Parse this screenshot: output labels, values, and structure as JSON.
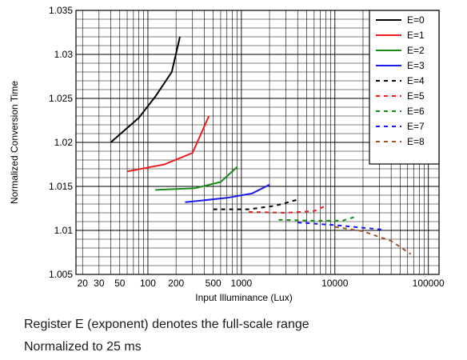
{
  "chart_data": {
    "type": "line",
    "title": "",
    "xlabel": "Input Illuminance (Lux)",
    "ylabel": "Normalized Conversion Time",
    "x_scale": "log",
    "xlim": [
      17,
      130000
    ],
    "ylim": [
      1.005,
      1.035
    ],
    "grid": true,
    "legend_position": "top-right",
    "x_tick_labels": [
      {
        "value": 20,
        "label": "20"
      },
      {
        "value": 30,
        "label": "30"
      },
      {
        "value": 50,
        "label": "50"
      },
      {
        "value": 100,
        "label": "100"
      },
      {
        "value": 200,
        "label": "200"
      },
      {
        "value": 500,
        "label": "500"
      },
      {
        "value": 1000,
        "label": "1000"
      },
      {
        "value": 10000,
        "label": "10000"
      },
      {
        "value": 100000,
        "label": "100000"
      }
    ],
    "y_tick_labels": [
      {
        "value": 1.005,
        "label": "1.005"
      },
      {
        "value": 1.01,
        "label": "1.01"
      },
      {
        "value": 1.015,
        "label": "1.015"
      },
      {
        "value": 1.02,
        "label": "1.02"
      },
      {
        "value": 1.025,
        "label": "1.025"
      },
      {
        "value": 1.03,
        "label": "1.03"
      },
      {
        "value": 1.035,
        "label": "1.035"
      }
    ],
    "series": [
      {
        "name": "E=0",
        "color": "#000000",
        "dashed": false,
        "x": [
          40,
          80,
          120,
          180,
          220
        ],
        "y": [
          1.02,
          1.0228,
          1.0252,
          1.028,
          1.032
        ]
      },
      {
        "name": "E=1",
        "color": "#ee1c1c",
        "dashed": false,
        "x": [
          60,
          150,
          300,
          450
        ],
        "y": [
          1.0167,
          1.0175,
          1.0188,
          1.023
        ]
      },
      {
        "name": "E=2",
        "color": "#1a8a1a",
        "dashed": false,
        "x": [
          120,
          320,
          600,
          900
        ],
        "y": [
          1.0146,
          1.0148,
          1.0155,
          1.0172
        ]
      },
      {
        "name": "E=3",
        "color": "#1a1aee",
        "dashed": false,
        "x": [
          250,
          700,
          1300,
          2000
        ],
        "y": [
          1.0132,
          1.0137,
          1.0142,
          1.0152
        ]
      },
      {
        "name": "E=4",
        "color": "#000000",
        "dashed": true,
        "x": [
          500,
          1200,
          2300,
          4000
        ],
        "y": [
          1.0124,
          1.0124,
          1.0128,
          1.0135
        ]
      },
      {
        "name": "E=5",
        "color": "#ee1c1c",
        "dashed": true,
        "x": [
          1200,
          3000,
          6000,
          8000
        ],
        "y": [
          1.0121,
          1.012,
          1.0122,
          1.0128
        ]
      },
      {
        "name": "E=6",
        "color": "#1a8a1a",
        "dashed": true,
        "x": [
          2500,
          6000,
          12000,
          16000
        ],
        "y": [
          1.0112,
          1.0111,
          1.0111,
          1.0115
        ]
      },
      {
        "name": "E=7",
        "color": "#1a1aee",
        "dashed": true,
        "x": [
          4000,
          10000,
          20000,
          32000
        ],
        "y": [
          1.0109,
          1.0106,
          1.0103,
          1.0101
        ]
      },
      {
        "name": "E=8",
        "color": "#a0522d",
        "dashed": true,
        "x": [
          10000,
          20000,
          40000,
          65000
        ],
        "y": [
          1.0104,
          1.0099,
          1.0088,
          1.0073
        ]
      }
    ]
  },
  "notes": [
    "Register E (exponent) denotes the full-scale range",
    "Normalized to 25 ms"
  ]
}
